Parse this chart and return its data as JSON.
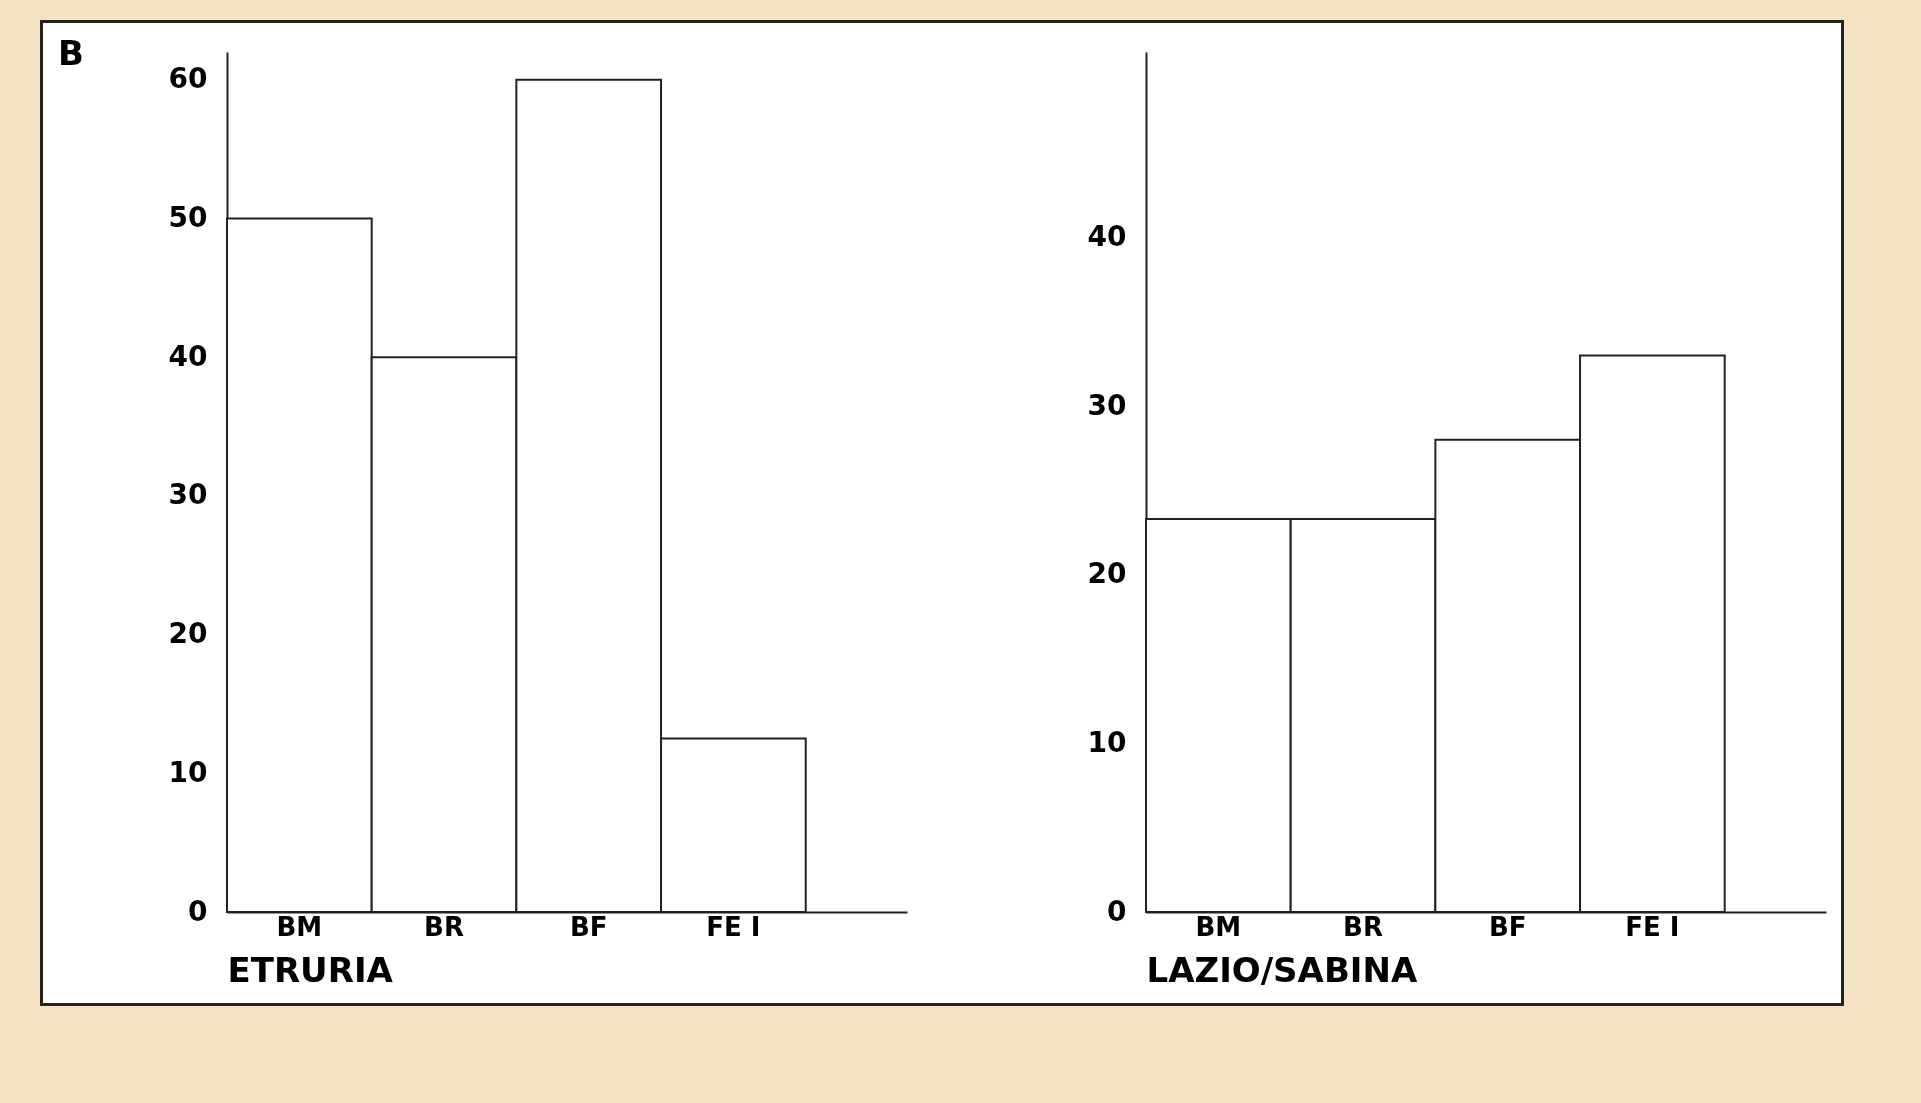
{
  "chart_data": [
    {
      "type": "bar",
      "title": "B",
      "xlabel": "ETRURIA",
      "categories": [
        "BM",
        "BR",
        "BF",
        "FE I"
      ],
      "values": [
        50,
        40,
        60,
        12.5
      ],
      "color": "#ffffff",
      "ylim": [
        0,
        62
      ],
      "yticks": [
        0,
        10,
        20,
        30,
        40,
        50,
        60
      ],
      "grid": false
    },
    {
      "type": "bar",
      "xlabel": "LAZIO/SABINA",
      "categories": [
        "BM",
        "BR",
        "BF",
        "FE I"
      ],
      "values": [
        23.3,
        23.3,
        28,
        33
      ],
      "color": "#ffffff",
      "ylim": [
        0,
        51
      ],
      "yticks": [
        0,
        10,
        20,
        30,
        40
      ],
      "grid": false
    }
  ]
}
